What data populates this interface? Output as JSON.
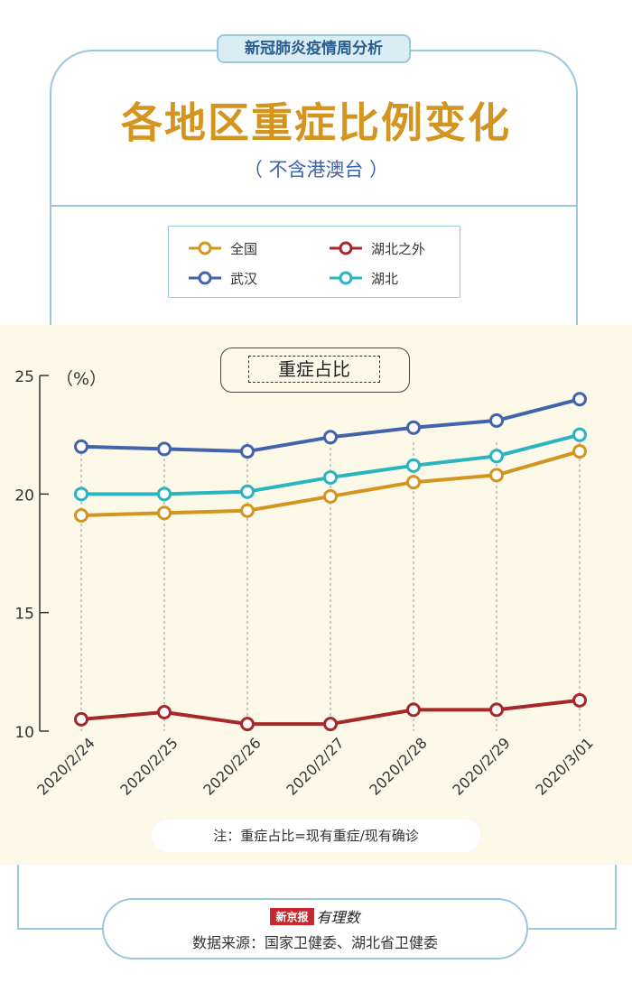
{
  "header": {
    "series_label": "新冠肺炎疫情周分析",
    "title": "各地区重症比例变化",
    "subtitle": "（ 不含港澳台 ）"
  },
  "legend": [
    {
      "name": "全国",
      "color": "#d4951f"
    },
    {
      "name": "湖北之外",
      "color": "#a8272a"
    },
    {
      "name": "武汉",
      "color": "#4363ad"
    },
    {
      "name": "湖北",
      "color": "#2ab4c0"
    }
  ],
  "chart_data": {
    "type": "line",
    "title": "重症占比",
    "ylabel": "（%）",
    "ylim": [
      10,
      25
    ],
    "yticks": [
      10,
      15,
      20,
      25
    ],
    "x": [
      "2020/2/24",
      "2020/2/25",
      "2020/2/26",
      "2020/2/27",
      "2020/2/28",
      "2020/2/29",
      "2020/3/01"
    ],
    "series": [
      {
        "name": "武汉",
        "color": "#4363ad",
        "values": [
          22.0,
          21.9,
          21.8,
          22.4,
          22.8,
          23.1,
          24.0
        ]
      },
      {
        "name": "湖北",
        "color": "#2ab4c0",
        "values": [
          20.0,
          20.0,
          20.1,
          20.7,
          21.2,
          21.6,
          22.5
        ]
      },
      {
        "name": "全国",
        "color": "#d4951f",
        "values": [
          19.1,
          19.2,
          19.3,
          19.9,
          20.5,
          20.8,
          21.8
        ]
      },
      {
        "name": "湖北之外",
        "color": "#a8272a",
        "values": [
          10.5,
          10.8,
          10.3,
          10.3,
          10.9,
          10.9,
          11.3
        ]
      }
    ],
    "grid": "vertical dashed"
  },
  "note": "注：重症占比=现有重症/现有确诊",
  "footer": {
    "brand_badge": "新京报",
    "brand_text": "有理数",
    "source": "数据来源：国家卫健委、湖北省卫健委"
  }
}
